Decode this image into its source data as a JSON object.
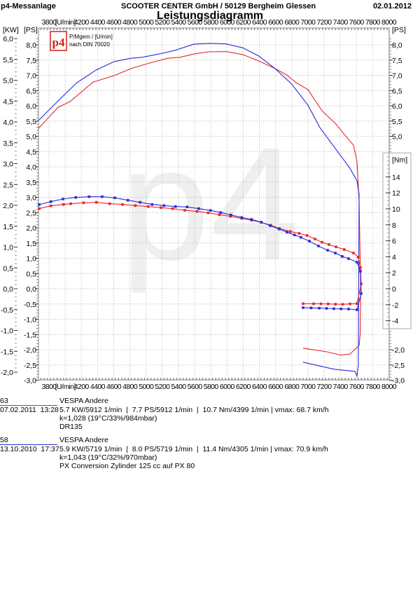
{
  "header": {
    "app": "p4-Messanlage",
    "company": "SCOOTER CENTER GmbH / 50129 Bergheim Glessen",
    "date": "02.01.2012"
  },
  "logo": {
    "text": "p4",
    "caption1": "P/Mgem / [U/min]",
    "caption2": "nach DIN 70020"
  },
  "colors": {
    "run_red": "#e8262a",
    "run_blue": "#2b2bd8",
    "grid": "#b8b8b8"
  },
  "chart_data": {
    "type": "line",
    "title": "Leistungsdiagramm",
    "watermark": "p4",
    "x_axis": {
      "label": "[U/min]",
      "range": [
        3680,
        8000
      ],
      "ticks": [
        "3800",
        "[U/min]",
        "4200",
        "4400",
        "4600",
        "4800",
        "5000",
        "5200",
        "5400",
        "5600",
        "5800",
        "6000",
        "6200",
        "6400",
        "6600",
        "6800",
        "7000",
        "7200",
        "7400",
        "7600",
        "7800",
        "8000"
      ],
      "tick_values": [
        3800,
        4000,
        4200,
        4400,
        4600,
        4800,
        5000,
        5200,
        5400,
        5600,
        5800,
        6000,
        6200,
        6400,
        6600,
        6800,
        7000,
        7200,
        7400,
        7600,
        7800,
        8000
      ]
    },
    "y_axis_kw": {
      "label": "[KW]",
      "range": [
        -3.0,
        6.2
      ],
      "ticks": [
        "6,0",
        "5,5",
        "5,0",
        "4,5",
        "4,0",
        "3,5",
        "3,0",
        "2,5",
        "2,0",
        "1,5",
        "1,0",
        "0,5",
        "0,0",
        "-0,5",
        "-1,0",
        "-1,5",
        "-2,0"
      ],
      "tick_values": [
        6,
        5.5,
        5,
        4.5,
        4,
        3.5,
        3,
        2.5,
        2,
        1.5,
        1,
        0.5,
        0,
        -0.5,
        -1,
        -1.5,
        -2
      ]
    },
    "y_axis_ps": {
      "label": "[PS]",
      "range": [
        -3.0,
        8.2
      ],
      "ticks": [
        "8,0",
        "7,5",
        "7,0",
        "6,5",
        "6,0",
        "5,5",
        "5,0",
        "4,5",
        "4,0",
        "3,5",
        "3,0",
        "2,5",
        "2,0",
        "1,5",
        "1,0",
        "0,5",
        "0,0",
        "-0,5",
        "-1,0",
        "-1,5",
        "-2,0",
        "-2,5",
        "-3,0"
      ],
      "tick_values": [
        8,
        7.5,
        7,
        6.5,
        6,
        5.5,
        5,
        4.5,
        4,
        3.5,
        3,
        2.5,
        2,
        1.5,
        1,
        0.5,
        0,
        -0.5,
        -1,
        -1.5,
        -2,
        -2.5,
        -3
      ],
      "right_ticks": [
        "8,0",
        "7,5",
        "7,0",
        "6,5",
        "6,0",
        "5,5",
        "5,0",
        "-2,0",
        "-2,5",
        "-3,0"
      ],
      "right_tick_values": [
        8,
        7.5,
        7,
        6.5,
        6,
        5.5,
        5,
        -2,
        -2.5,
        -3
      ]
    },
    "y_axis_nm": {
      "label": "[Nm]",
      "range": [
        -5,
        16
      ],
      "ticks": [
        "14",
        "12",
        "10",
        "8",
        "6",
        "4",
        "2",
        "0",
        "-2",
        "-4"
      ],
      "tick_values": [
        14,
        12,
        10,
        8,
        6,
        4,
        2,
        0,
        -2,
        -4
      ]
    },
    "grid": true,
    "series": [
      {
        "name": "63 power [PS]",
        "color": "#e8262a",
        "axis": "ps",
        "markers": false,
        "points": [
          [
            3670,
            5.26
          ],
          [
            3912,
            5.95
          ],
          [
            4060,
            6.14
          ],
          [
            4345,
            6.78
          ],
          [
            4605,
            6.99
          ],
          [
            4812,
            7.22
          ],
          [
            5037,
            7.4
          ],
          [
            5270,
            7.56
          ],
          [
            5417,
            7.59
          ],
          [
            5590,
            7.7
          ],
          [
            5764,
            7.77
          ],
          [
            5990,
            7.78
          ],
          [
            6196,
            7.68
          ],
          [
            6395,
            7.47
          ],
          [
            6594,
            7.22
          ],
          [
            6741,
            7.01
          ],
          [
            6854,
            6.76
          ],
          [
            7000,
            6.53
          ],
          [
            7174,
            5.84
          ],
          [
            7347,
            5.4
          ],
          [
            7460,
            5.03
          ],
          [
            7563,
            4.71
          ],
          [
            7606,
            4.18
          ],
          [
            7632,
            2.87
          ],
          [
            7652,
            0.0
          ],
          [
            7645,
            -1.5
          ],
          [
            7632,
            -1.86
          ],
          [
            7520,
            -2.14
          ],
          [
            7407,
            -2.18
          ],
          [
            7234,
            -2.07
          ],
          [
            6940,
            -1.95
          ]
        ]
      },
      {
        "name": "58 power [PS]",
        "color": "#2b2bd8",
        "axis": "ps",
        "markers": false,
        "points": [
          [
            3670,
            5.52
          ],
          [
            3973,
            6.32
          ],
          [
            4146,
            6.76
          ],
          [
            4380,
            7.17
          ],
          [
            4605,
            7.45
          ],
          [
            4812,
            7.56
          ],
          [
            4950,
            7.59
          ],
          [
            5158,
            7.7
          ],
          [
            5357,
            7.82
          ],
          [
            5590,
            8.02
          ],
          [
            5790,
            8.05
          ],
          [
            5990,
            8.03
          ],
          [
            6196,
            7.9
          ],
          [
            6395,
            7.63
          ],
          [
            6594,
            7.22
          ],
          [
            6800,
            6.71
          ],
          [
            7000,
            6.02
          ],
          [
            7147,
            5.29
          ],
          [
            7347,
            4.57
          ],
          [
            7520,
            3.95
          ],
          [
            7606,
            3.54
          ],
          [
            7632,
            3.1
          ],
          [
            7623,
            -2.48
          ],
          [
            7606,
            -2.87
          ],
          [
            7580,
            -2.71
          ],
          [
            7321,
            -2.64
          ],
          [
            6940,
            -2.41
          ]
        ]
      },
      {
        "name": "63 torque [Nm]",
        "color": "#e8262a",
        "axis": "nm",
        "markers": true,
        "points": [
          [
            3679,
            10.03
          ],
          [
            3823,
            10.38
          ],
          [
            3979,
            10.55
          ],
          [
            4068,
            10.64
          ],
          [
            4227,
            10.76
          ],
          [
            4386,
            10.82
          ],
          [
            4550,
            10.64
          ],
          [
            4708,
            10.55
          ],
          [
            4867,
            10.41
          ],
          [
            5026,
            10.29
          ],
          [
            5184,
            10.15
          ],
          [
            5329,
            10.03
          ],
          [
            5478,
            9.82
          ],
          [
            5628,
            9.68
          ],
          [
            5766,
            9.5
          ],
          [
            5905,
            9.27
          ],
          [
            6043,
            9.06
          ],
          [
            6182,
            8.8
          ],
          [
            6303,
            8.57
          ],
          [
            6424,
            8.31
          ],
          [
            6540,
            7.96
          ],
          [
            6649,
            7.54
          ],
          [
            6782,
            7.17
          ],
          [
            6891,
            6.93
          ],
          [
            6989,
            6.67
          ],
          [
            7087,
            6.23
          ],
          [
            7174,
            5.82
          ],
          [
            7260,
            5.53
          ],
          [
            7347,
            5.24
          ],
          [
            7448,
            4.91
          ],
          [
            7563,
            4.47
          ],
          [
            7621,
            3.97
          ],
          [
            7649,
            2.66
          ],
          [
            7658,
            0.6
          ],
          [
            7606,
            -1.87
          ],
          [
            7520,
            -1.9
          ],
          [
            7430,
            -1.95
          ],
          [
            7340,
            -1.93
          ],
          [
            7250,
            -1.9
          ],
          [
            7160,
            -1.89
          ],
          [
            7070,
            -1.88
          ],
          [
            6940,
            -1.87
          ]
        ]
      },
      {
        "name": "58 torque [Nm]",
        "color": "#2b2bd8",
        "axis": "nm",
        "markers": true,
        "points": [
          [
            3679,
            10.53
          ],
          [
            3823,
            10.9
          ],
          [
            3973,
            11.23
          ],
          [
            4131,
            11.43
          ],
          [
            4296,
            11.52
          ],
          [
            4457,
            11.52
          ],
          [
            4613,
            11.38
          ],
          [
            4775,
            11.08
          ],
          [
            4925,
            10.82
          ],
          [
            5074,
            10.55
          ],
          [
            5221,
            10.41
          ],
          [
            5363,
            10.29
          ],
          [
            5507,
            10.24
          ],
          [
            5651,
            10.03
          ],
          [
            5796,
            9.8
          ],
          [
            5922,
            9.54
          ],
          [
            6049,
            9.24
          ],
          [
            6182,
            8.92
          ],
          [
            6303,
            8.68
          ],
          [
            6424,
            8.33
          ],
          [
            6534,
            7.89
          ],
          [
            6643,
            7.48
          ],
          [
            6741,
            7.08
          ],
          [
            6834,
            6.73
          ],
          [
            6914,
            6.43
          ],
          [
            7018,
            5.96
          ],
          [
            7130,
            5.35
          ],
          [
            7243,
            4.82
          ],
          [
            7338,
            4.47
          ],
          [
            7424,
            4.04
          ],
          [
            7502,
            3.77
          ],
          [
            7606,
            3.33
          ],
          [
            7649,
            2.19
          ],
          [
            7658,
            -0.61
          ],
          [
            7606,
            -2.63
          ],
          [
            7502,
            -2.54
          ],
          [
            7410,
            -2.52
          ],
          [
            7320,
            -2.5
          ],
          [
            7230,
            -2.46
          ],
          [
            7140,
            -2.43
          ],
          [
            7040,
            -2.4
          ],
          [
            6940,
            -2.37
          ]
        ]
      }
    ]
  },
  "legend": [
    {
      "id": "63",
      "date": "07.02.2011  13:28",
      "model": "VESPA Andere",
      "stats": "5.7 KW/5912 1/min  |  7.7 PS/5912 1/min  |  10.7 Nm/4399 1/min | vmax: 68.7 km/h",
      "conditions": "k=1,028 (19°C/33%/984mbar)",
      "note": "DR135",
      "color": "#e8262a"
    },
    {
      "id": "58",
      "date": "13.10.2010  17:37",
      "model": "VESPA Andere",
      "stats": "5.9 KW/5719 1/min  |  8.0 PS/5719 1/min  |  11.4 Nm/4305 1/min | vmax: 70.9 km/h",
      "conditions": "k=1,043 (19°C/32%/970mbar)",
      "note": "PX Conversion Zylinder 125 cc auf PX 80",
      "color": "#2b2bd8"
    }
  ]
}
